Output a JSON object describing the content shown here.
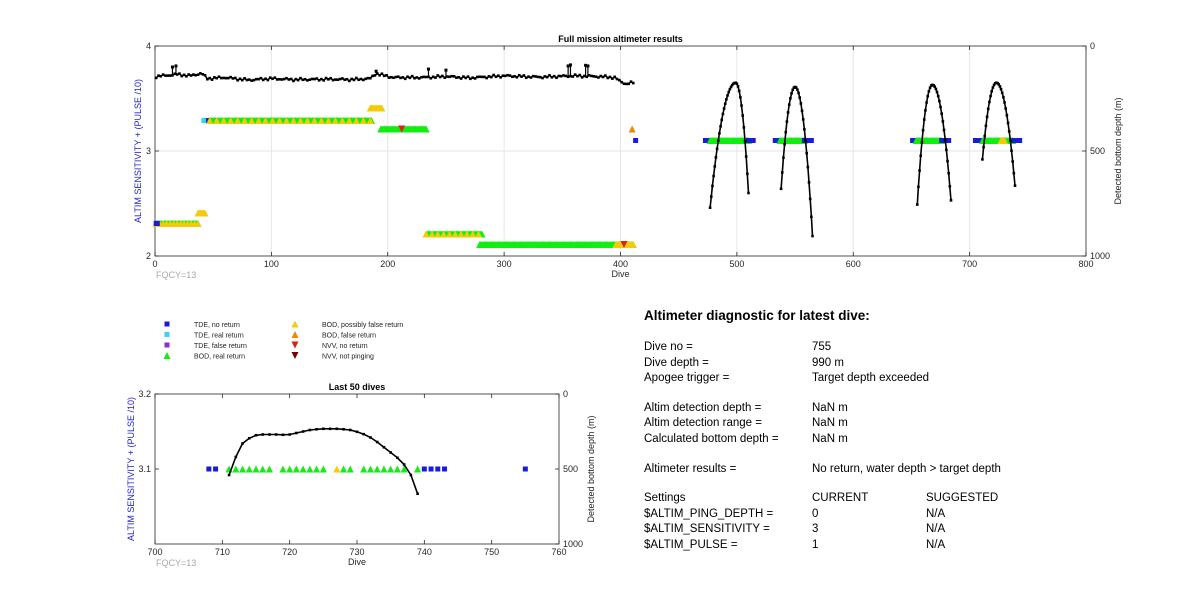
{
  "chart_data": [
    {
      "type": "scatter",
      "title": "Full mission altimeter results",
      "xlabel": "Dive",
      "ylabel": "ALTIM SENSITIVITY + (PULSE /10)",
      "y2label": "Detected bottom depth (m)",
      "xlim": [
        0,
        800
      ],
      "ylim": [
        2,
        4
      ],
      "y2lim": [
        0,
        1000
      ],
      "y2_reversed": true,
      "xticks": [
        0,
        100,
        200,
        300,
        400,
        500,
        600,
        700,
        800
      ],
      "yticks": [
        2,
        3,
        4
      ],
      "y2ticks": [
        0,
        500,
        1000
      ],
      "grid": true,
      "annotation": "FQCY=13",
      "markers": [
        {
          "kind": "bod_real",
          "x_from": 1,
          "x_to": 37,
          "y": 2.31
        },
        {
          "kind": "bod_possible",
          "x_from": 1,
          "x_to": 37,
          "y": 2.31,
          "stride": 3
        },
        {
          "kind": "tde_no",
          "x_from": 1,
          "x_to": 2,
          "y": 2.31
        },
        {
          "kind": "bod_possible",
          "x_from": 37,
          "x_to": 43,
          "y": 2.41
        },
        {
          "kind": "tde_real",
          "x_from": 42,
          "x_to": 46,
          "y": 3.29
        },
        {
          "kind": "tde_no",
          "x_from": 46,
          "x_to": 47,
          "y": 3.29
        },
        {
          "kind": "bod_real",
          "x_from": 47,
          "x_to": 186,
          "y": 3.29
        },
        {
          "kind": "bod_possible",
          "x_from": 47,
          "x_to": 186,
          "y": 3.29,
          "stride": 6
        },
        {
          "kind": "bod_possible",
          "x_from": 185,
          "x_to": 195,
          "y": 3.41
        },
        {
          "kind": "bod_real",
          "x_from": 194,
          "x_to": 233,
          "y": 3.21
        },
        {
          "kind": "nvv_no",
          "x_from": 212,
          "x_to": 212,
          "y": 3.21
        },
        {
          "kind": "bod_real",
          "x_from": 233,
          "x_to": 281,
          "y": 2.21
        },
        {
          "kind": "bod_possible",
          "x_from": 233,
          "x_to": 281,
          "y": 2.21,
          "stride": 5
        },
        {
          "kind": "bod_real",
          "x_from": 279,
          "x_to": 411,
          "y": 2.11
        },
        {
          "kind": "bod_possible",
          "x_from": 396,
          "x_to": 411,
          "y": 2.11
        },
        {
          "kind": "nvv_no",
          "x_from": 403,
          "x_to": 403,
          "y": 2.11
        },
        {
          "kind": "bod_false",
          "x_from": 410,
          "x_to": 410,
          "y": 3.21
        },
        {
          "kind": "tde_no",
          "x_from": 413,
          "x_to": 413,
          "y": 3.1
        },
        {
          "kind": "tde_no",
          "x_from": 473,
          "x_to": 476,
          "y": 3.1
        },
        {
          "kind": "bod_real",
          "x_from": 477,
          "x_to": 510,
          "y": 3.1
        },
        {
          "kind": "tde_no",
          "x_from": 510,
          "x_to": 514,
          "y": 3.1
        },
        {
          "kind": "tde_no",
          "x_from": 533,
          "x_to": 536,
          "y": 3.1
        },
        {
          "kind": "bod_real",
          "x_from": 537,
          "x_to": 558,
          "y": 3.1
        },
        {
          "kind": "tde_no",
          "x_from": 558,
          "x_to": 564,
          "y": 3.1
        },
        {
          "kind": "tde_no",
          "x_from": 651,
          "x_to": 653,
          "y": 3.1
        },
        {
          "kind": "bod_real",
          "x_from": 654,
          "x_to": 676,
          "y": 3.1
        },
        {
          "kind": "tde_no",
          "x_from": 676,
          "x_to": 682,
          "y": 3.1
        },
        {
          "kind": "tde_no",
          "x_from": 705,
          "x_to": 709,
          "y": 3.1
        },
        {
          "kind": "bod_real",
          "x_from": 711,
          "x_to": 737,
          "y": 3.1
        },
        {
          "kind": "bod_possible",
          "x_from": 727,
          "x_to": 730,
          "y": 3.1
        },
        {
          "kind": "tde_no",
          "x_from": 738,
          "x_to": 743,
          "y": 3.1
        }
      ],
      "depth_flat": {
        "x_from": 1,
        "x_to": 412,
        "baseline": [
          [
            1,
            145
          ],
          [
            10,
            140
          ],
          [
            20,
            135
          ],
          [
            30,
            142
          ],
          [
            40,
            130
          ],
          [
            45,
            155
          ],
          [
            60,
            150
          ],
          [
            80,
            162
          ],
          [
            100,
            155
          ],
          [
            120,
            160
          ],
          [
            150,
            158
          ],
          [
            170,
            160
          ],
          [
            185,
            155
          ],
          [
            190,
            130
          ],
          [
            196,
            140
          ],
          [
            205,
            150
          ],
          [
            230,
            150
          ],
          [
            250,
            145
          ],
          [
            270,
            152
          ],
          [
            300,
            142
          ],
          [
            330,
            148
          ],
          [
            360,
            142
          ],
          [
            380,
            145
          ],
          [
            395,
            150
          ],
          [
            400,
            170
          ],
          [
            405,
            180
          ],
          [
            410,
            175
          ]
        ],
        "spikes": [
          [
            15,
            100
          ],
          [
            18,
            95
          ],
          [
            190,
            120
          ],
          [
            235,
            110
          ],
          [
            250,
            115
          ],
          [
            355,
            95
          ],
          [
            357,
            90
          ],
          [
            370,
            92
          ],
          [
            372,
            95
          ]
        ]
      },
      "depth_humps": [
        {
          "x_from": 477,
          "x_to": 510,
          "peak_x": 499,
          "peak_y": 175,
          "y_start": 770,
          "y_end": 700
        },
        {
          "x_from": 538,
          "x_to": 565,
          "peak_x": 550,
          "peak_y": 195,
          "y_start": 680,
          "y_end": 905
        },
        {
          "x_from": 655,
          "x_to": 684,
          "peak_x": 668,
          "peak_y": 185,
          "y_start": 755,
          "y_end": 735
        },
        {
          "x_from": 711,
          "x_to": 739,
          "peak_x": 723,
          "peak_y": 175,
          "y_start": 540,
          "y_end": 665
        }
      ]
    },
    {
      "type": "scatter",
      "title": "Last 50 dives",
      "xlabel": "Dive",
      "ylabel": "ALTIM SENSITIVITY + (PULSE /10)",
      "y2label": "Detected bottom depth (m)",
      "xlim": [
        700,
        760
      ],
      "ylim": [
        3.0,
        3.2
      ],
      "y2lim": [
        0,
        1000
      ],
      "y2_reversed": true,
      "xticks": [
        700,
        710,
        720,
        730,
        740,
        750,
        760
      ],
      "yticks": [
        3.1,
        3.2
      ],
      "y2ticks": [
        0,
        500,
        1000
      ],
      "grid": false,
      "annotation": "FQCY=13",
      "points": [
        {
          "kind": "tde_no",
          "x": 708,
          "y": 3.1
        },
        {
          "kind": "tde_no",
          "x": 709,
          "y": 3.1
        },
        {
          "kind": "bod_real",
          "x": 711,
          "y": 3.1
        },
        {
          "kind": "bod_real",
          "x": 712,
          "y": 3.1
        },
        {
          "kind": "bod_real",
          "x": 713,
          "y": 3.1
        },
        {
          "kind": "bod_real",
          "x": 714,
          "y": 3.1
        },
        {
          "kind": "bod_real",
          "x": 715,
          "y": 3.1
        },
        {
          "kind": "bod_real",
          "x": 716,
          "y": 3.1
        },
        {
          "kind": "bod_real",
          "x": 717,
          "y": 3.1
        },
        {
          "kind": "bod_real",
          "x": 719,
          "y": 3.1
        },
        {
          "kind": "bod_real",
          "x": 720,
          "y": 3.1
        },
        {
          "kind": "bod_real",
          "x": 721,
          "y": 3.1
        },
        {
          "kind": "bod_real",
          "x": 722,
          "y": 3.1
        },
        {
          "kind": "bod_real",
          "x": 723,
          "y": 3.1
        },
        {
          "kind": "bod_real",
          "x": 724,
          "y": 3.1
        },
        {
          "kind": "bod_real",
          "x": 725,
          "y": 3.1
        },
        {
          "kind": "bod_possible",
          "x": 727,
          "y": 3.1
        },
        {
          "kind": "bod_real",
          "x": 728,
          "y": 3.1
        },
        {
          "kind": "bod_real",
          "x": 729,
          "y": 3.1
        },
        {
          "kind": "bod_real",
          "x": 731,
          "y": 3.1
        },
        {
          "kind": "bod_real",
          "x": 732,
          "y": 3.1
        },
        {
          "kind": "bod_real",
          "x": 733,
          "y": 3.1
        },
        {
          "kind": "bod_real",
          "x": 734,
          "y": 3.1
        },
        {
          "kind": "bod_real",
          "x": 735,
          "y": 3.1
        },
        {
          "kind": "bod_real",
          "x": 736,
          "y": 3.1
        },
        {
          "kind": "bod_real",
          "x": 737,
          "y": 3.1
        },
        {
          "kind": "bod_real",
          "x": 739,
          "y": 3.1
        },
        {
          "kind": "tde_no",
          "x": 740,
          "y": 3.1
        },
        {
          "kind": "tde_no",
          "x": 741,
          "y": 3.1
        },
        {
          "kind": "tde_no",
          "x": 742,
          "y": 3.1
        },
        {
          "kind": "tde_no",
          "x": 743,
          "y": 3.1
        },
        {
          "kind": "tde_no",
          "x": 755,
          "y": 3.1
        }
      ],
      "depth_line": [
        [
          711,
          540
        ],
        [
          712,
          420
        ],
        [
          713,
          330
        ],
        [
          714,
          295
        ],
        [
          715,
          275
        ],
        [
          716,
          270
        ],
        [
          717,
          270
        ],
        [
          718,
          270
        ],
        [
          719,
          272
        ],
        [
          720,
          270
        ],
        [
          721,
          260
        ],
        [
          722,
          250
        ],
        [
          723,
          240
        ],
        [
          724,
          235
        ],
        [
          725,
          232
        ],
        [
          726,
          232
        ],
        [
          727,
          232
        ],
        [
          728,
          235
        ],
        [
          729,
          240
        ],
        [
          730,
          252
        ],
        [
          731,
          268
        ],
        [
          732,
          290
        ],
        [
          733,
          320
        ],
        [
          734,
          355
        ],
        [
          735,
          390
        ],
        [
          736,
          425
        ],
        [
          737,
          470
        ],
        [
          738,
          540
        ],
        [
          739,
          665
        ]
      ]
    }
  ],
  "legend": [
    {
      "kind": "tde_no",
      "label": "TDE, no return"
    },
    {
      "kind": "tde_real",
      "label": "TDE, real return"
    },
    {
      "kind": "tde_false",
      "label": "TDE, false return"
    },
    {
      "kind": "bod_real",
      "label": "BOD, real return"
    },
    {
      "kind": "bod_possible",
      "label": "BOD, possibly false return"
    },
    {
      "kind": "bod_false",
      "label": "BOD, false return"
    },
    {
      "kind": "nvv_no",
      "label": "NVV, no return"
    },
    {
      "kind": "nvv_notping",
      "label": "NVV, not pinging"
    }
  ],
  "marker_styles": {
    "tde_no": {
      "shape": "square",
      "color": "#1a1adb"
    },
    "tde_real": {
      "shape": "square",
      "color": "#33d6f0"
    },
    "tde_false": {
      "shape": "square",
      "color": "#8a30c8"
    },
    "bod_real": {
      "shape": "tri-up",
      "color": "#11ee11"
    },
    "bod_possible": {
      "shape": "tri-up",
      "color": "#f2cc0c"
    },
    "bod_false": {
      "shape": "tri-up",
      "color": "#ee8800"
    },
    "nvv_no": {
      "shape": "tri-down",
      "color": "#e02010"
    },
    "nvv_notping": {
      "shape": "tri-down",
      "color": "#7a0000"
    }
  },
  "diagnostic": {
    "title": "Altimeter diagnostic for latest dive:",
    "dive_no_label": "Dive no =",
    "dive_no_value": "755",
    "dive_depth_label": "Dive depth =",
    "dive_depth_value": "990 m",
    "apogee_label": "Apogee trigger =",
    "apogee_value": "Target depth exceeded",
    "det_depth_label": "Altim detection depth =",
    "det_depth_value": "NaN m",
    "det_range_label": "Altim detection range =",
    "det_range_value": "NaN m",
    "calc_depth_label": "Calculated bottom depth =",
    "calc_depth_value": "NaN m",
    "results_label": "Altimeter results =",
    "results_value": "No return, water depth > target depth",
    "settings_label": "Settings",
    "current_label": "CURRENT",
    "suggested_label": "SUGGESTED",
    "ping_depth_label": "$ALTIM_PING_DEPTH =",
    "ping_depth_current": "0",
    "ping_depth_suggested": "N/A",
    "sensitivity_label": "$ALTIM_SENSITIVITY =",
    "sensitivity_current": "3",
    "sensitivity_suggested": "N/A",
    "pulse_label": "$ALTIM_PULSE =",
    "pulse_current": "1",
    "pulse_suggested": "N/A"
  }
}
